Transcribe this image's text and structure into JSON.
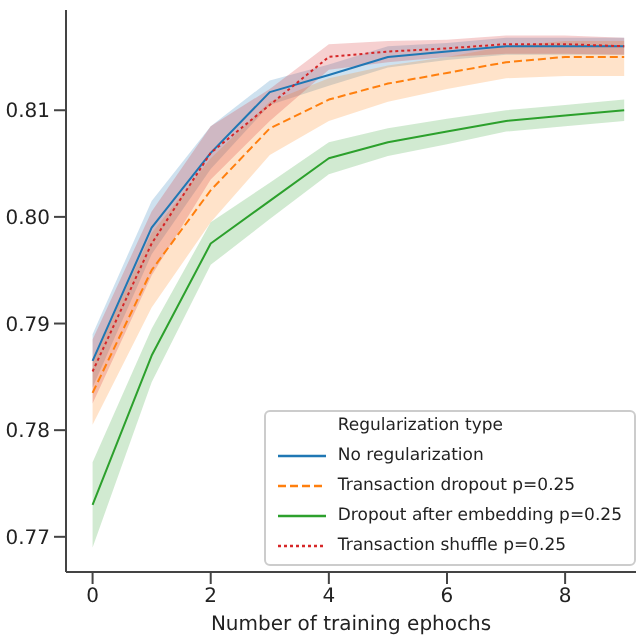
{
  "chart_data": {
    "type": "line",
    "xlabel": "Number of training ephochs",
    "legend_title": "Regularization type",
    "legend": "bottom right",
    "marker": "none",
    "x": [
      0,
      1,
      2,
      3,
      4,
      5,
      6,
      7,
      8,
      9
    ],
    "xlim": [
      -0.45,
      9.2
    ],
    "xticks": [
      0,
      2,
      4,
      6,
      8
    ],
    "ylim": [
      0.7667,
      0.8194
    ],
    "yticks": [
      0.77,
      0.78,
      0.79,
      {
        "value": 0.8,
        "label": "0.80"
      },
      0.81
    ],
    "series": [
      {
        "name": "No regularization",
        "color": "#1f77b4",
        "line_style": "solid",
        "values": [
          0.7865,
          0.799,
          0.806,
          0.8117,
          0.8133,
          0.815,
          0.8155,
          0.816,
          0.816,
          0.816
        ],
        "lower": [
          0.784,
          0.7965,
          0.8045,
          0.8105,
          0.8123,
          0.814,
          0.8147,
          0.8152,
          0.8152,
          0.8152
        ],
        "upper": [
          0.789,
          0.8015,
          0.8085,
          0.8128,
          0.8143,
          0.816,
          0.8163,
          0.8168,
          0.8168,
          0.8168
        ]
      },
      {
        "name": "Transaction dropout p=0.25",
        "color": "#ff7f0e",
        "line_style": "dashed",
        "values": [
          0.7835,
          0.795,
          0.8025,
          0.8083,
          0.811,
          0.8125,
          0.8135,
          0.8145,
          0.815,
          0.815
        ],
        "lower": [
          0.7805,
          0.7915,
          0.7995,
          0.8058,
          0.809,
          0.8108,
          0.812,
          0.813,
          0.8132,
          0.8132
        ],
        "upper": [
          0.7865,
          0.7985,
          0.8055,
          0.8108,
          0.813,
          0.8142,
          0.815,
          0.816,
          0.8165,
          0.8165
        ]
      },
      {
        "name": "Dropout after embedding p=0.25",
        "color": "#2ca02c",
        "line_style": "solid",
        "values": [
          0.773,
          0.787,
          0.7975,
          0.8015,
          0.8055,
          0.807,
          0.808,
          0.809,
          0.8095,
          0.81
        ],
        "lower": [
          0.769,
          0.7845,
          0.7955,
          0.7998,
          0.804,
          0.8057,
          0.8068,
          0.808,
          0.8085,
          0.809
        ],
        "upper": [
          0.777,
          0.7895,
          0.7995,
          0.8032,
          0.807,
          0.8083,
          0.8092,
          0.81,
          0.8105,
          0.811
        ]
      },
      {
        "name": "Transaction shuffle p=0.25",
        "color": "#d62728",
        "line_style": "dotted",
        "values": [
          0.7855,
          0.7975,
          0.806,
          0.8105,
          0.815,
          0.8155,
          0.8158,
          0.8162,
          0.8162,
          0.816
        ],
        "lower": [
          0.7825,
          0.7945,
          0.8035,
          0.809,
          0.8138,
          0.8145,
          0.815,
          0.8153,
          0.8153,
          0.8152
        ],
        "upper": [
          0.7885,
          0.8005,
          0.8085,
          0.812,
          0.8162,
          0.8165,
          0.8166,
          0.817,
          0.817,
          0.8168
        ]
      }
    ]
  }
}
